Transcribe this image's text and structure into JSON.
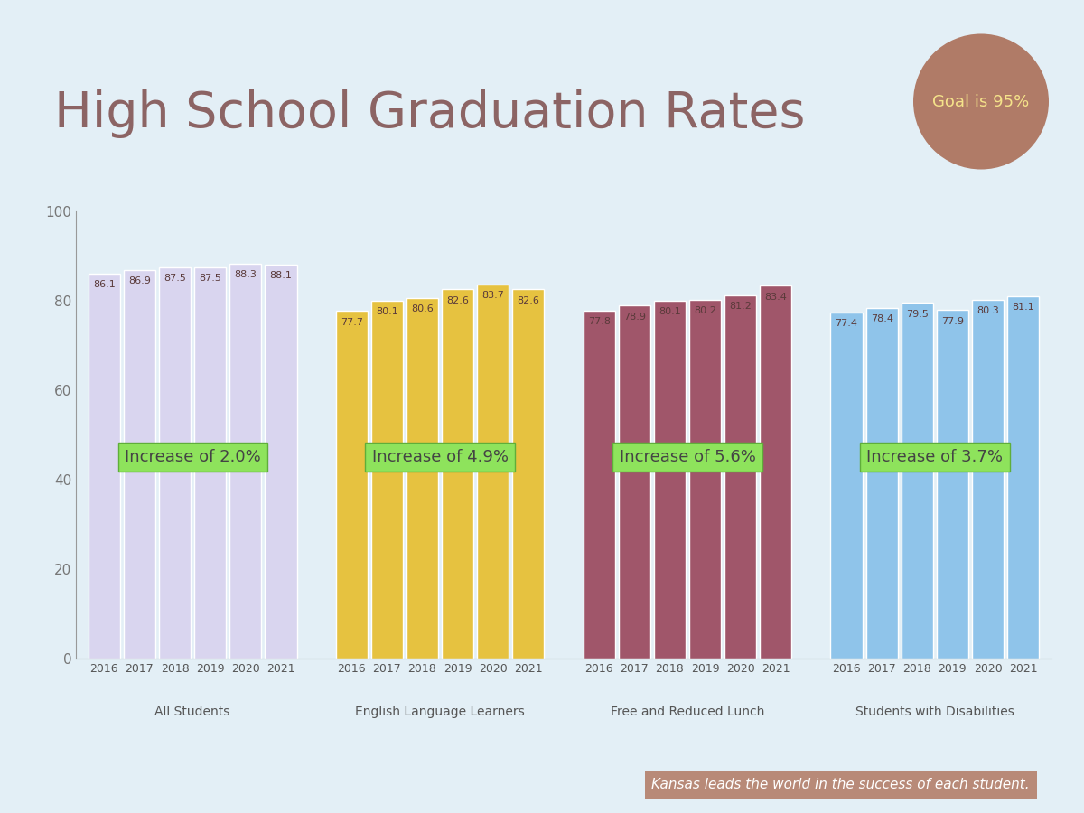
{
  "chart_data": {
    "type": "bar",
    "title": "High School Graduation Rates",
    "badge": "Goal is 95%",
    "footer": "Kansas leads the world in the success of each student.",
    "categories": [
      "2016",
      "2017",
      "2018",
      "2019",
      "2020",
      "2021"
    ],
    "series": [
      {
        "name": "All Students",
        "color": "#d9d5ef",
        "values": [
          86.1,
          86.9,
          87.5,
          87.5,
          88.3,
          88.1
        ],
        "annotation": "Increase of 2.0%"
      },
      {
        "name": "English Language Learners",
        "color": "#e6c240",
        "values": [
          77.7,
          80.1,
          80.6,
          82.6,
          83.7,
          82.6
        ],
        "annotation": "Increase of 4.9%"
      },
      {
        "name": "Free and Reduced Lunch",
        "color": "#a0566a",
        "values": [
          77.8,
          78.9,
          80.1,
          80.2,
          81.2,
          83.4
        ],
        "annotation": "Increase of 5.6%"
      },
      {
        "name": "Students with Disabilities",
        "color": "#8fc4ea",
        "values": [
          77.4,
          78.4,
          79.5,
          77.9,
          80.3,
          81.1
        ],
        "annotation": "Increase of 3.7%"
      }
    ],
    "ylim": [
      0,
      100
    ],
    "yticks": [
      0,
      20,
      40,
      60,
      80,
      100
    ],
    "grid": false,
    "data_labels": true
  }
}
